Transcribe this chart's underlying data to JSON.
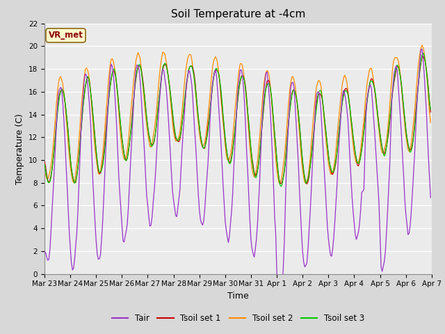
{
  "title": "Soil Temperature at -4cm",
  "xlabel": "Time",
  "ylabel": "Temperature (C)",
  "ylim": [
    0,
    22
  ],
  "yticks": [
    0,
    2,
    4,
    6,
    8,
    10,
    12,
    14,
    16,
    18,
    20,
    22
  ],
  "xtick_labels": [
    "Mar 23",
    "Mar 24",
    "Mar 25",
    "Mar 26",
    "Mar 27",
    "Mar 28",
    "Mar 29",
    "Mar 30",
    "Mar 31",
    "Apr 1",
    "Apr 2",
    "Apr 3",
    "Apr 4",
    "Apr 5",
    "Apr 6",
    "Apr 7"
  ],
  "annotation_text": "VR_met",
  "annotation_color": "#8B0000",
  "annotation_bg": "#FFFACD",
  "annotation_edge": "#8B6914",
  "line_colors": {
    "Tair": "#9932CC",
    "Tsoil set 1": "#CC0000",
    "Tsoil set 2": "#FF8C00",
    "Tsoil set 3": "#00CC00"
  },
  "legend_labels": [
    "Tair",
    "Tsoil set 1",
    "Tsoil set 2",
    "Tsoil set 3"
  ],
  "bg_color": "#D8D8D8",
  "plot_bg_color": "#EBEBEB",
  "grid_color": "#FFFFFF",
  "title_fontsize": 11,
  "axis_fontsize": 9,
  "tick_fontsize": 7.5
}
